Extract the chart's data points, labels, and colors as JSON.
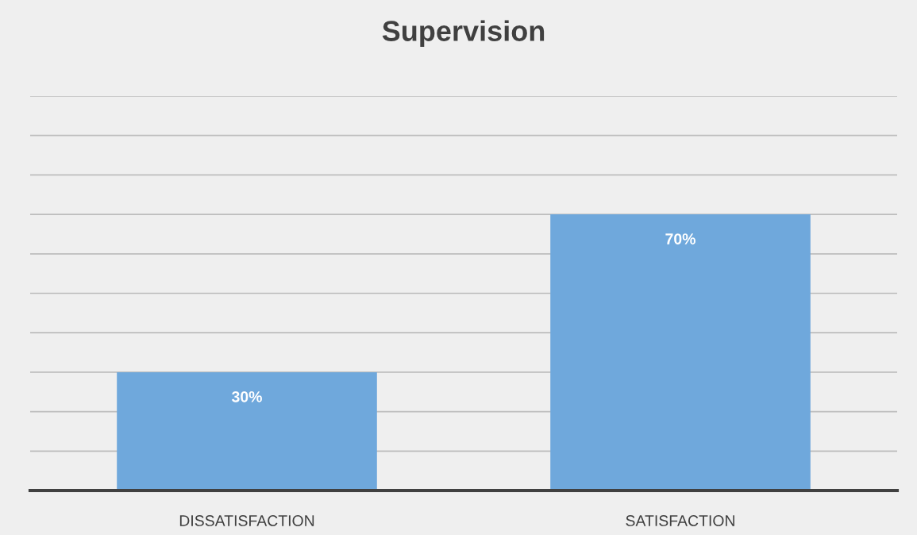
{
  "chart_data": {
    "type": "bar",
    "title": "Supervision",
    "categories": [
      "DISSATISFACTION",
      "SATISFACTION"
    ],
    "values": [
      30,
      70
    ],
    "color": "#6fa8dc",
    "value_labels": [
      "30%",
      "70%"
    ],
    "ylim": [
      0,
      100
    ],
    "yticks": [
      {
        "value": 0,
        "label": null
      },
      {
        "value": 10,
        "label": null
      },
      {
        "value": 20,
        "label": null
      },
      {
        "value": 30,
        "label": null
      },
      {
        "value": 40,
        "label": null
      },
      {
        "value": 50,
        "label": null
      },
      {
        "value": 60,
        "label": null
      },
      {
        "value": 70,
        "label": null
      },
      {
        "value": 80,
        "label": null
      },
      {
        "value": 90,
        "label": null
      },
      {
        "value": 100,
        "label": null
      }
    ],
    "grid": "y",
    "tick_labels": "x"
  }
}
